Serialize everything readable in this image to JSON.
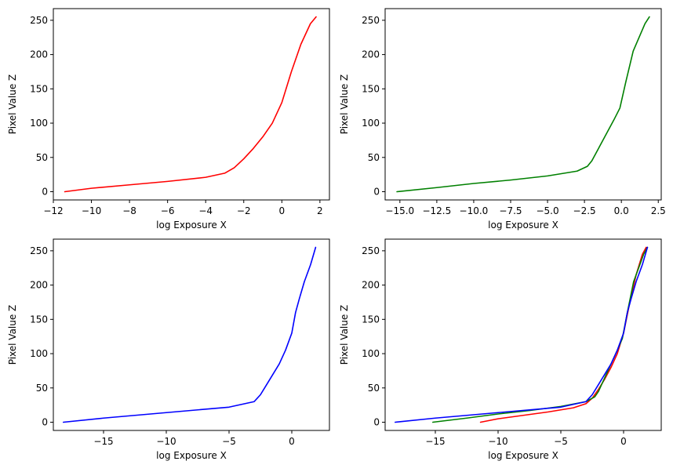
{
  "chart_data": [
    {
      "type": "line",
      "xlabel": "log Exposure X",
      "ylabel": "Pixel Value Z",
      "xlim": [
        -12.0,
        2.5
      ],
      "ylim": [
        -12,
        267
      ],
      "xticks": [
        -12,
        -10,
        -8,
        -6,
        -4,
        -2,
        0,
        2
      ],
      "xtick_labels": [
        "−12",
        "−10",
        "−8",
        "−6",
        "−4",
        "−2",
        "0",
        "2"
      ],
      "yticks": [
        0,
        50,
        100,
        150,
        200,
        250
      ],
      "ytick_labels": [
        "0",
        "50",
        "100",
        "150",
        "200",
        "250"
      ],
      "series": [
        {
          "color": "#ff0000",
          "x": [
            -11.4,
            -10,
            -8,
            -6,
            -4,
            -3,
            -2.5,
            -2,
            -1.5,
            -1,
            -0.5,
            0,
            0.5,
            1,
            1.5,
            1.8
          ],
          "y": [
            0,
            5,
            10,
            15,
            21,
            27,
            35,
            48,
            63,
            80,
            100,
            130,
            175,
            215,
            245,
            255
          ]
        }
      ]
    },
    {
      "type": "line",
      "xlabel": "log Exposure X",
      "ylabel": "Pixel Value Z",
      "xlim": [
        -16.0,
        2.7
      ],
      "ylim": [
        -12,
        267
      ],
      "xticks": [
        -15,
        -12.5,
        -10,
        -7.5,
        -5,
        -2.5,
        0,
        2.5
      ],
      "xtick_labels": [
        "−15.0",
        "−12.5",
        "−10.0",
        "−7.5",
        "−5.0",
        "−2.5",
        "0.0",
        "2.5"
      ],
      "yticks": [
        0,
        50,
        100,
        150,
        200,
        250
      ],
      "ytick_labels": [
        "0",
        "50",
        "100",
        "150",
        "200",
        "250"
      ],
      "series": [
        {
          "color": "#008000",
          "x": [
            -15.2,
            -12.5,
            -10,
            -7.5,
            -5,
            -3,
            -2.3,
            -2,
            -1.5,
            -1,
            -0.5,
            -0.1,
            0.3,
            0.8,
            1.2,
            1.6,
            1.9
          ],
          "y": [
            0,
            6,
            12,
            17,
            23,
            30,
            37,
            45,
            65,
            85,
            105,
            122,
            160,
            205,
            225,
            245,
            255
          ]
        }
      ]
    },
    {
      "type": "line",
      "xlabel": "log Exposure X",
      "ylabel": "Pixel Value Z",
      "xlim": [
        -19.0,
        3.0
      ],
      "ylim": [
        -12,
        267
      ],
      "xticks": [
        -15,
        -10,
        -5,
        0
      ],
      "xtick_labels": [
        "−15",
        "−10",
        "−5",
        "0"
      ],
      "yticks": [
        0,
        50,
        100,
        150,
        200,
        250
      ],
      "ytick_labels": [
        "0",
        "50",
        "100",
        "150",
        "200",
        "250"
      ],
      "series": [
        {
          "color": "#0000ff",
          "x": [
            -18.2,
            -15,
            -10,
            -5,
            -3,
            -2.5,
            -2,
            -1.5,
            -1,
            -0.5,
            0,
            0.3,
            0.6,
            1,
            1.5,
            1.9
          ],
          "y": [
            0,
            6,
            14,
            22,
            30,
            40,
            55,
            70,
            85,
            105,
            130,
            160,
            180,
            205,
            230,
            255
          ]
        }
      ]
    },
    {
      "type": "line",
      "xlabel": "log Exposure X",
      "ylabel": "Pixel Value Z",
      "xlim": [
        -19.0,
        3.0
      ],
      "ylim": [
        -12,
        267
      ],
      "xticks": [
        -15,
        -10,
        -5,
        0
      ],
      "xtick_labels": [
        "−15",
        "−10",
        "−5",
        "0"
      ],
      "yticks": [
        0,
        50,
        100,
        150,
        200,
        250
      ],
      "ytick_labels": [
        "0",
        "50",
        "100",
        "150",
        "200",
        "250"
      ],
      "series": [
        {
          "color": "#ff0000",
          "x": [
            -11.4,
            -10,
            -8,
            -6,
            -4,
            -3,
            -2.5,
            -2,
            -1.5,
            -1,
            -0.5,
            0,
            0.5,
            1,
            1.5,
            1.8
          ],
          "y": [
            0,
            5,
            10,
            15,
            21,
            27,
            35,
            48,
            63,
            80,
            100,
            130,
            175,
            215,
            245,
            255
          ]
        },
        {
          "color": "#008000",
          "x": [
            -15.2,
            -12.5,
            -10,
            -7.5,
            -5,
            -3,
            -2.3,
            -2,
            -1.5,
            -1,
            -0.5,
            -0.1,
            0.3,
            0.8,
            1.2,
            1.6,
            1.9
          ],
          "y": [
            0,
            6,
            12,
            17,
            23,
            30,
            37,
            45,
            65,
            85,
            105,
            122,
            160,
            205,
            225,
            245,
            255
          ]
        },
        {
          "color": "#0000ff",
          "x": [
            -18.2,
            -15,
            -10,
            -5,
            -3,
            -2.5,
            -2,
            -1.5,
            -1,
            -0.5,
            0,
            0.3,
            0.6,
            1,
            1.5,
            1.9
          ],
          "y": [
            0,
            6,
            14,
            22,
            30,
            40,
            55,
            70,
            85,
            105,
            130,
            160,
            180,
            205,
            230,
            255
          ]
        }
      ]
    }
  ]
}
